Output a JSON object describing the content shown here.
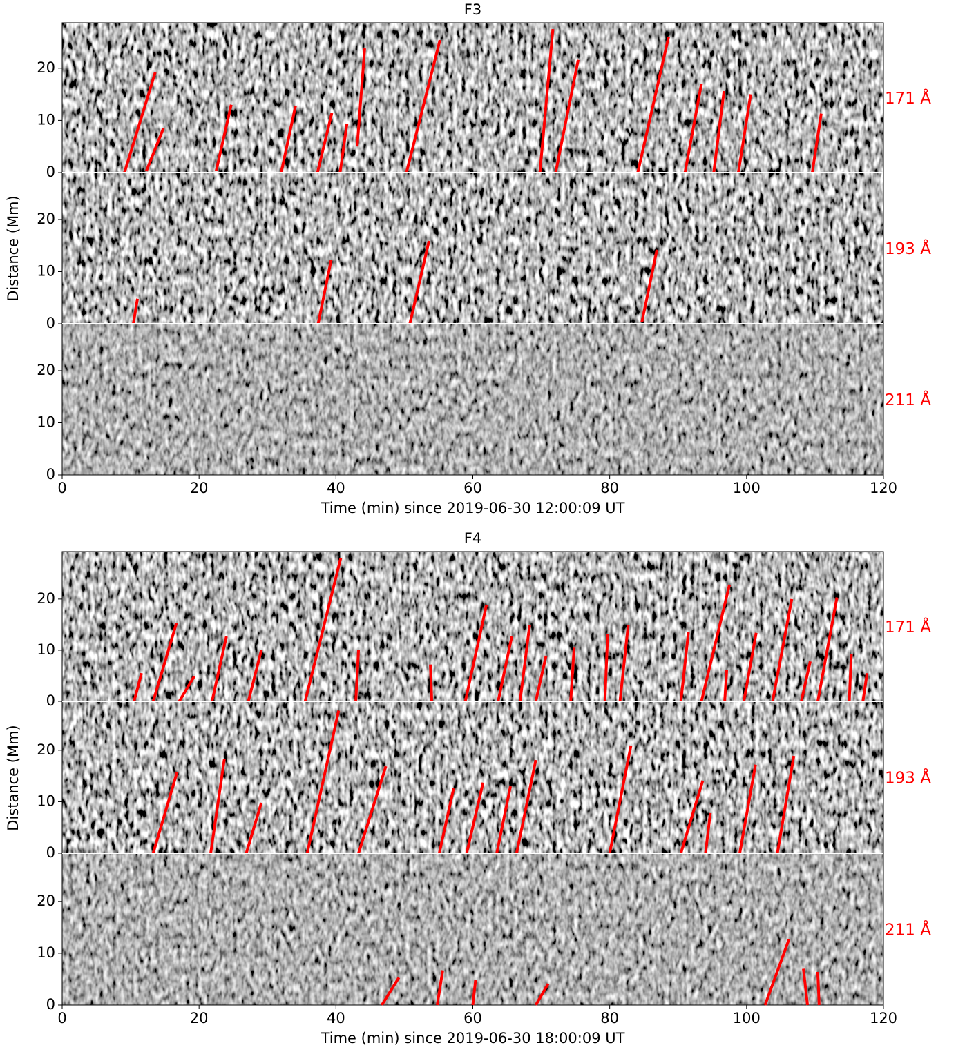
{
  "chart_data": [
    {
      "type": "segments",
      "title": "F3",
      "label": "171 Å",
      "label_color": "#ff0000",
      "color": "#ff0000",
      "contrast": "high",
      "xlim": [
        0,
        120
      ],
      "ylim": [
        0,
        28.7
      ],
      "yticks": [
        0,
        10,
        20
      ],
      "segments": [
        {
          "x": [
            9.1,
            13.6
          ],
          "y": [
            0,
            19.2
          ]
        },
        {
          "x": [
            12.3,
            14.8
          ],
          "y": [
            0.3,
            8.5
          ]
        },
        {
          "x": [
            22.5,
            24.7
          ],
          "y": [
            0.3,
            13
          ]
        },
        {
          "x": [
            32,
            34.1
          ],
          "y": [
            0,
            12.8
          ]
        },
        {
          "x": [
            37.3,
            39.4
          ],
          "y": [
            0,
            11.4
          ]
        },
        {
          "x": [
            40.6,
            41.6
          ],
          "y": [
            0,
            9.3
          ]
        },
        {
          "x": [
            43.1,
            44.2
          ],
          "y": [
            5,
            23.8
          ]
        },
        {
          "x": [
            50.3,
            55.2
          ],
          "y": [
            0,
            25.4
          ]
        },
        {
          "x": [
            69.8,
            71.7
          ],
          "y": [
            0,
            27.5
          ]
        },
        {
          "x": [
            72.1,
            75.4
          ],
          "y": [
            0,
            21.6
          ]
        },
        {
          "x": [
            84.1,
            88.6
          ],
          "y": [
            0,
            26
          ]
        },
        {
          "x": [
            91,
            93.4
          ],
          "y": [
            0,
            17
          ]
        },
        {
          "x": [
            95.2,
            96.7
          ],
          "y": [
            0,
            15.6
          ]
        },
        {
          "x": [
            98.8,
            100.6
          ],
          "y": [
            0,
            15
          ]
        },
        {
          "x": [
            109.6,
            110.9
          ],
          "y": [
            0,
            11.3
          ]
        }
      ]
    },
    {
      "type": "segments",
      "ylabel": "Distance (Mm)",
      "label": "193 Å",
      "label_color": "#ff0000",
      "color": "#ff0000",
      "contrast": "high",
      "xlim": [
        0,
        120
      ],
      "ylim": [
        0,
        29
      ],
      "yticks": [
        0,
        10,
        20
      ],
      "segments": [
        {
          "x": [
            10.4,
            11
          ],
          "y": [
            0,
            4.8
          ]
        },
        {
          "x": [
            37.4,
            39.3
          ],
          "y": [
            0,
            12.2
          ]
        },
        {
          "x": [
            50.8,
            53.6
          ],
          "y": [
            0,
            15.9
          ]
        },
        {
          "x": [
            84.7,
            86.9
          ],
          "y": [
            0.3,
            14.2
          ]
        }
      ]
    },
    {
      "type": "segments",
      "xlabel": "Time (min) since 2019-06-30 12:00:09 UT",
      "label": "211 Å",
      "label_color": "#ff0000",
      "color": "#ff0000",
      "contrast": "low",
      "xlim": [
        0,
        120
      ],
      "ylim": [
        0,
        29
      ],
      "xticks": [
        0,
        20,
        40,
        60,
        80,
        100,
        120
      ],
      "yticks": [
        0,
        10,
        20
      ],
      "segments": []
    },
    {
      "type": "segments",
      "title": "F4",
      "label": "171 Å",
      "label_color": "#ff0000",
      "color": "#ff0000",
      "contrast": "high",
      "xlim": [
        0,
        120
      ],
      "ylim": [
        0,
        29.3
      ],
      "yticks": [
        0,
        10,
        20
      ],
      "segments": [
        {
          "x": [
            10.5,
            11.6
          ],
          "y": [
            0,
            5.5
          ]
        },
        {
          "x": [
            13.3,
            16.7
          ],
          "y": [
            0,
            15.3
          ]
        },
        {
          "x": [
            17.1,
            19.3
          ],
          "y": [
            0,
            4.9
          ]
        },
        {
          "x": [
            21.9,
            24
          ],
          "y": [
            0,
            12.7
          ]
        },
        {
          "x": [
            27.2,
            29.1
          ],
          "y": [
            0,
            10
          ]
        },
        {
          "x": [
            35.5,
            40.7
          ],
          "y": [
            0,
            28
          ]
        },
        {
          "x": [
            42.9,
            43.3
          ],
          "y": [
            0,
            10
          ]
        },
        {
          "x": [
            54,
            53.8
          ],
          "y": [
            0,
            7.2
          ]
        },
        {
          "x": [
            58.9,
            62
          ],
          "y": [
            0,
            18.9
          ]
        },
        {
          "x": [
            63.7,
            65.7
          ],
          "y": [
            0,
            12.7
          ]
        },
        {
          "x": [
            66.9,
            68.3
          ],
          "y": [
            0,
            14.9
          ]
        },
        {
          "x": [
            69.2,
            70.7
          ],
          "y": [
            0,
            8.9
          ]
        },
        {
          "x": [
            74.3,
            74.8
          ],
          "y": [
            0,
            10.5
          ]
        },
        {
          "x": [
            79.3,
            79.7
          ],
          "y": [
            0,
            13.2
          ]
        },
        {
          "x": [
            81.5,
            82.7
          ],
          "y": [
            0,
            14.9
          ]
        },
        {
          "x": [
            90.4,
            91.5
          ],
          "y": [
            0,
            13.5
          ]
        },
        {
          "x": [
            93.4,
            97.5
          ],
          "y": [
            0,
            22.8
          ]
        },
        {
          "x": [
            96.8,
            97.1
          ],
          "y": [
            0,
            6.2
          ]
        },
        {
          "x": [
            99.6,
            101.4
          ],
          "y": [
            0,
            13.4
          ]
        },
        {
          "x": [
            103.8,
            106.6
          ],
          "y": [
            0,
            20
          ]
        },
        {
          "x": [
            108,
            109.3
          ],
          "y": [
            0,
            7.8
          ]
        },
        {
          "x": [
            110.4,
            113.2
          ],
          "y": [
            0,
            20.3
          ]
        },
        {
          "x": [
            115,
            115.3
          ],
          "y": [
            0,
            9.2
          ]
        },
        {
          "x": [
            117,
            117.6
          ],
          "y": [
            0,
            5.5
          ]
        }
      ]
    },
    {
      "type": "segments",
      "ylabel": "Distance (Mm)",
      "label": "193 Å",
      "label_color": "#ff0000",
      "color": "#ff0000",
      "contrast": "high",
      "xlim": [
        0,
        120
      ],
      "ylim": [
        0,
        29.5
      ],
      "yticks": [
        0,
        10,
        20
      ],
      "segments": [
        {
          "x": [
            13.3,
            16.8
          ],
          "y": [
            0,
            15.8
          ]
        },
        {
          "x": [
            21.7,
            23.7
          ],
          "y": [
            0,
            18.3
          ]
        },
        {
          "x": [
            26.9,
            29.1
          ],
          "y": [
            0,
            9.8
          ]
        },
        {
          "x": [
            35.8,
            40.4
          ],
          "y": [
            0,
            27.7
          ]
        },
        {
          "x": [
            43.3,
            47.3
          ],
          "y": [
            0,
            16.9
          ]
        },
        {
          "x": [
            55.1,
            57.2
          ],
          "y": [
            0,
            12.6
          ]
        },
        {
          "x": [
            59.1,
            61.5
          ],
          "y": [
            0,
            13.7
          ]
        },
        {
          "x": [
            63.5,
            65.5
          ],
          "y": [
            0,
            13
          ]
        },
        {
          "x": [
            66.4,
            69.2
          ],
          "y": [
            0,
            18.1
          ]
        },
        {
          "x": [
            80,
            83.1
          ],
          "y": [
            0,
            20.9
          ]
        },
        {
          "x": [
            90.4,
            93.6
          ],
          "y": [
            0,
            14.1
          ]
        },
        {
          "x": [
            94,
            94.7
          ],
          "y": [
            0,
            7.8
          ]
        },
        {
          "x": [
            99,
            101.3
          ],
          "y": [
            0,
            17.2
          ]
        },
        {
          "x": [
            104.5,
            106.9
          ],
          "y": [
            0,
            18.9
          ]
        }
      ]
    },
    {
      "type": "segments",
      "xlabel": "Time (min) since 2019-06-30 18:00:09 UT",
      "label": "211 Å",
      "label_color": "#ff0000",
      "color": "#ff0000",
      "contrast": "low",
      "xlim": [
        0,
        120
      ],
      "ylim": [
        0,
        29.3
      ],
      "xticks": [
        0,
        20,
        40,
        60,
        80,
        100,
        120
      ],
      "yticks": [
        0,
        10,
        20
      ],
      "segments": [
        {
          "x": [
            46.7,
            49.2
          ],
          "y": [
            0,
            5.3
          ]
        },
        {
          "x": [
            54.8,
            55.6
          ],
          "y": [
            0,
            6.7
          ]
        },
        {
          "x": [
            60,
            60.4
          ],
          "y": [
            0,
            4.8
          ]
        },
        {
          "x": [
            69.2,
            71
          ],
          "y": [
            0,
            4.1
          ]
        },
        {
          "x": [
            102.7,
            106.2
          ],
          "y": [
            0,
            12.7
          ]
        },
        {
          "x": [
            108.3,
            108.9
          ],
          "y": [
            7,
            0
          ]
        },
        {
          "x": [
            110.4,
            110.6
          ],
          "y": [
            6.4,
            0
          ]
        }
      ]
    }
  ]
}
